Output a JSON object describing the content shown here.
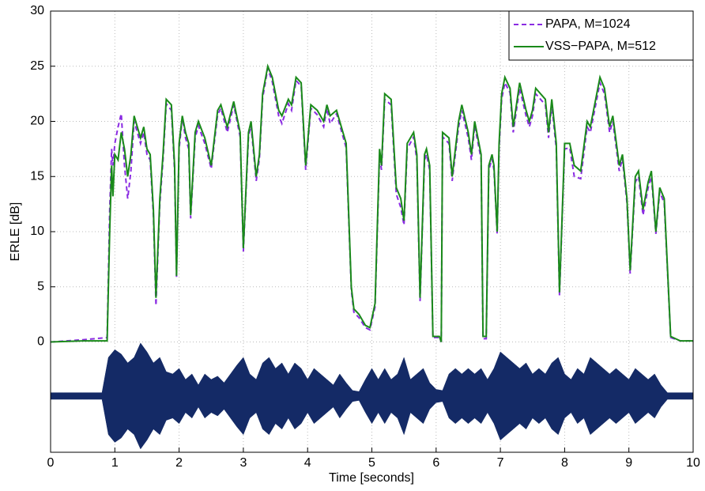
{
  "chart_data": {
    "type": "line",
    "xlabel": "Time [seconds]",
    "ylabel": "ERLE [dB]",
    "xlim": [
      0,
      10
    ],
    "ylim": [
      -10,
      30
    ],
    "xticks": [
      0,
      1,
      2,
      3,
      4,
      5,
      6,
      7,
      8,
      9,
      10
    ],
    "yticks": [
      0,
      5,
      10,
      15,
      20,
      25,
      30
    ],
    "grid": true,
    "legend": "upper right",
    "x": [
      0,
      0.5,
      0.88,
      0.92,
      0.95,
      0.97,
      1.0,
      1.05,
      1.1,
      1.15,
      1.2,
      1.25,
      1.3,
      1.35,
      1.4,
      1.45,
      1.5,
      1.55,
      1.6,
      1.64,
      1.7,
      1.75,
      1.8,
      1.88,
      1.93,
      1.96,
      2.0,
      2.05,
      2.1,
      2.15,
      2.18,
      2.25,
      2.3,
      2.4,
      2.5,
      2.6,
      2.65,
      2.75,
      2.85,
      2.95,
      3.0,
      3.08,
      3.12,
      3.2,
      3.25,
      3.3,
      3.38,
      3.45,
      3.55,
      3.6,
      3.7,
      3.75,
      3.82,
      3.9,
      3.97,
      4.05,
      4.15,
      4.25,
      4.3,
      4.35,
      4.45,
      4.6,
      4.68,
      4.72,
      4.8,
      4.9,
      4.97,
      5.05,
      5.12,
      5.15,
      5.2,
      5.3,
      5.38,
      5.45,
      5.5,
      5.55,
      5.65,
      5.7,
      5.75,
      5.82,
      5.85,
      5.9,
      5.95,
      6.05,
      6.08,
      6.1,
      6.2,
      6.25,
      6.35,
      6.4,
      6.5,
      6.55,
      6.6,
      6.7,
      6.73,
      6.78,
      6.82,
      6.87,
      6.9,
      6.95,
      6.98,
      7.02,
      7.07,
      7.15,
      7.2,
      7.3,
      7.4,
      7.45,
      7.5,
      7.55,
      7.7,
      7.75,
      7.8,
      7.87,
      7.92,
      8.0,
      8.08,
      8.15,
      8.25,
      8.35,
      8.4,
      8.55,
      8.62,
      8.7,
      8.75,
      8.85,
      8.9,
      8.97,
      9.02,
      9.1,
      9.15,
      9.22,
      9.3,
      9.35,
      9.42,
      9.48,
      9.55,
      9.65,
      9.8,
      10
    ],
    "series": [
      {
        "name": "PAPA, M=1024",
        "color": "#8a2be2",
        "linestyle": "dashed",
        "values": [
          0,
          0.2,
          0.4,
          12,
          17.5,
          16,
          18,
          19.5,
          20.7,
          16,
          13,
          15.5,
          20,
          19,
          18,
          19,
          17,
          16.5,
          11.5,
          3.3,
          12.5,
          16.5,
          21.6,
          21,
          15.5,
          5.9,
          17.5,
          20.3,
          18.5,
          17.5,
          11.2,
          18.5,
          19.6,
          18,
          15.7,
          20.6,
          21.2,
          19,
          21.5,
          18.6,
          8.2,
          18.6,
          19.6,
          14.6,
          16.6,
          22.1,
          24.8,
          23.6,
          20.5,
          19.8,
          21.6,
          21,
          23.7,
          23.2,
          15.6,
          21.2,
          20.6,
          19.5,
          21.2,
          19.8,
          20.7,
          17.6,
          4.7,
          2.7,
          2.2,
          1.3,
          1.1,
          3.2,
          16.9,
          15.6,
          22,
          21.5,
          13.4,
          12.2,
          10.6,
          17.5,
          18.6,
          16.5,
          3.7,
          16.5,
          17,
          15.6,
          0.4,
          0.4,
          0,
          18.6,
          18,
          14.6,
          19.5,
          21,
          18.5,
          16.5,
          19.6,
          16.6,
          0.3,
          0.3,
          15.6,
          16.6,
          15.6,
          9.8,
          17.5,
          22,
          23.5,
          22.6,
          19,
          23,
          20.5,
          19.5,
          20.5,
          22.5,
          21.5,
          18.5,
          21.5,
          17.5,
          4.2,
          17.5,
          17.6,
          15,
          14.8,
          19.5,
          19,
          23.5,
          22.5,
          19,
          20,
          15.5,
          16.6,
          12.6,
          6.2,
          14.5,
          15,
          11.5,
          14,
          15,
          9.8,
          13.6,
          12.6,
          0.4,
          0.1,
          0.1
        ]
      },
      {
        "name": "VSS−PAPA, M=512",
        "color": "#1a8a1a",
        "linestyle": "solid",
        "values": [
          0,
          0.1,
          0.1,
          10,
          16,
          13.2,
          17,
          16.5,
          19,
          17.5,
          15,
          17,
          20.5,
          19.5,
          18.5,
          19.5,
          17.5,
          17,
          12,
          4,
          13,
          17,
          22,
          21.5,
          16,
          6,
          18,
          20.5,
          19,
          18,
          11.5,
          19,
          20,
          18.5,
          16,
          21,
          21.5,
          19.5,
          21.8,
          19,
          8.5,
          19,
          20,
          15,
          17,
          22.5,
          25,
          24,
          21,
          20.5,
          22,
          21.5,
          24,
          23.5,
          16,
          21.5,
          21,
          20,
          21.5,
          20.5,
          21,
          18,
          5,
          3,
          2.5,
          1.5,
          1.3,
          3.5,
          17.5,
          16,
          22.5,
          22,
          14,
          13,
          11,
          18,
          19,
          17,
          4,
          17,
          17.5,
          16,
          0.5,
          0.5,
          0,
          19,
          18.5,
          15,
          20,
          21.5,
          19,
          17,
          20,
          17,
          0.5,
          0.5,
          16,
          17,
          16,
          10,
          18,
          22.5,
          24,
          23,
          19.5,
          23.5,
          21,
          20,
          21,
          23,
          22,
          19,
          22,
          18,
          4.5,
          18,
          18,
          16,
          15.5,
          20,
          19.5,
          24,
          23,
          19.5,
          20.5,
          16,
          17,
          13,
          6.5,
          15,
          15.5,
          12,
          14.5,
          15.5,
          10,
          14,
          13,
          0.5,
          0.1,
          0.1
        ]
      }
    ],
    "signal": {
      "color": "#142a66",
      "x": [
        0,
        0.1,
        0.2,
        0.3,
        0.4,
        0.5,
        0.6,
        0.7,
        0.8,
        0.9,
        1.0,
        1.1,
        1.2,
        1.3,
        1.4,
        1.5,
        1.6,
        1.7,
        1.8,
        1.9,
        2.0,
        2.1,
        2.2,
        2.3,
        2.4,
        2.5,
        2.6,
        2.7,
        2.8,
        2.9,
        3.0,
        3.1,
        3.2,
        3.3,
        3.4,
        3.5,
        3.6,
        3.7,
        3.8,
        3.9,
        4.0,
        4.1,
        4.2,
        4.3,
        4.4,
        4.5,
        4.6,
        4.7,
        4.8,
        4.9,
        5.0,
        5.1,
        5.2,
        5.3,
        5.4,
        5.5,
        5.6,
        5.7,
        5.8,
        5.9,
        6.0,
        6.1,
        6.2,
        6.3,
        6.4,
        6.5,
        6.6,
        6.7,
        6.8,
        6.9,
        7.0,
        7.1,
        7.2,
        7.3,
        7.4,
        7.5,
        7.6,
        7.7,
        7.8,
        7.9,
        8.0,
        8.1,
        8.2,
        8.3,
        8.4,
        8.5,
        8.6,
        8.7,
        8.8,
        8.9,
        9.0,
        9.1,
        9.2,
        9.3,
        9.4,
        9.5,
        9.6,
        9.7,
        9.8,
        9.9,
        10
      ],
      "upper": [
        -4.6,
        -4.6,
        -4.6,
        -4.6,
        -4.6,
        -4.6,
        -4.6,
        -4.6,
        -4.6,
        -1.4,
        -0.7,
        -1.1,
        -1.9,
        -1.4,
        -0.1,
        -0.9,
        -1.9,
        -1.4,
        -2.7,
        -2.9,
        -2.4,
        -3.4,
        -2.9,
        -3.9,
        -2.9,
        -3.4,
        -3.1,
        -3.7,
        -2.9,
        -2.1,
        -1.4,
        -2.9,
        -3.4,
        -1.9,
        -1.4,
        -2.4,
        -1.9,
        -2.9,
        -1.9,
        -2.4,
        -3.4,
        -2.4,
        -2.9,
        -3.4,
        -3.9,
        -2.9,
        -3.7,
        -4.4,
        -4.5,
        -3.4,
        -2.4,
        -3.4,
        -2.4,
        -3.4,
        -2.9,
        -1.4,
        -3.4,
        -2.9,
        -2.4,
        -3.7,
        -4.3,
        -4.4,
        -2.9,
        -2.4,
        -2.9,
        -2.4,
        -2.9,
        -2.4,
        -3.4,
        -2.4,
        -0.9,
        -1.4,
        -1.9,
        -2.4,
        -1.9,
        -2.9,
        -2.4,
        -2.9,
        -1.9,
        -1.4,
        -2.9,
        -3.4,
        -2.4,
        -2.9,
        -1.4,
        -1.9,
        -2.4,
        -2.9,
        -2.4,
        -2.9,
        -3.4,
        -2.4,
        -2.9,
        -3.4,
        -2.9,
        -3.9,
        -4.6,
        -4.6,
        -4.6,
        -4.6,
        -4.6
      ],
      "lower": [
        -5.2,
        -5.2,
        -5.2,
        -5.2,
        -5.2,
        -5.2,
        -5.2,
        -5.2,
        -5.2,
        -8.4,
        -9.1,
        -8.7,
        -7.9,
        -8.4,
        -9.7,
        -8.9,
        -7.9,
        -8.4,
        -7.1,
        -6.9,
        -7.4,
        -6.4,
        -6.9,
        -5.9,
        -6.9,
        -6.4,
        -6.7,
        -6.1,
        -6.9,
        -7.7,
        -8.4,
        -6.9,
        -6.4,
        -7.9,
        -8.4,
        -7.4,
        -7.9,
        -6.9,
        -7.9,
        -7.4,
        -6.4,
        -7.4,
        -6.9,
        -6.4,
        -5.9,
        -6.9,
        -6.1,
        -5.4,
        -5.3,
        -6.4,
        -7.4,
        -6.4,
        -7.4,
        -6.4,
        -6.9,
        -8.4,
        -6.4,
        -6.9,
        -7.4,
        -6.1,
        -5.5,
        -5.4,
        -6.9,
        -7.4,
        -6.9,
        -7.4,
        -6.9,
        -7.4,
        -6.4,
        -7.4,
        -8.9,
        -8.4,
        -7.9,
        -7.4,
        -7.9,
        -6.9,
        -7.4,
        -6.9,
        -7.9,
        -8.4,
        -6.9,
        -6.4,
        -7.4,
        -6.9,
        -8.4,
        -7.9,
        -7.4,
        -6.9,
        -7.4,
        -6.9,
        -6.4,
        -7.4,
        -6.9,
        -6.4,
        -6.9,
        -5.9,
        -5.2,
        -5.2,
        -5.2,
        -5.2,
        -5.2
      ]
    }
  }
}
